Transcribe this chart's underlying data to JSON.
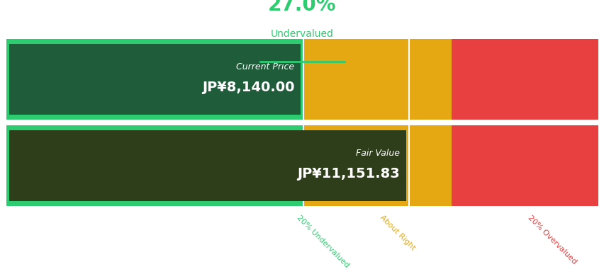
{
  "title_pct": "27.0%",
  "title_label": "Undervalued",
  "current_price_label": "Current Price",
  "current_price_value": "JP¥8,140.00",
  "fair_value_label": "Fair Value",
  "fair_value_value": "JP¥11,151.83",
  "color_green_light": "#2ecc71",
  "color_green_dark": "#236b4a",
  "color_yellow": "#e5a812",
  "color_red": "#e84040",
  "color_dark_box_current": "#1e5c3a",
  "color_dark_box_fair": "#2e3d1a",
  "label_20under": "20% Undervalued",
  "label_about_right": "About Right",
  "label_20over": "20% Overvalued",
  "label_color_under": "#2ecc71",
  "label_color_right": "#e5a812",
  "label_color_over": "#e84040",
  "bg_color": "#ffffff",
  "title_green": "#2ecc71",
  "seg_green": 0.502,
  "seg_yellow1": 0.178,
  "seg_yellow2": 0.072,
  "seg_red": 0.248
}
